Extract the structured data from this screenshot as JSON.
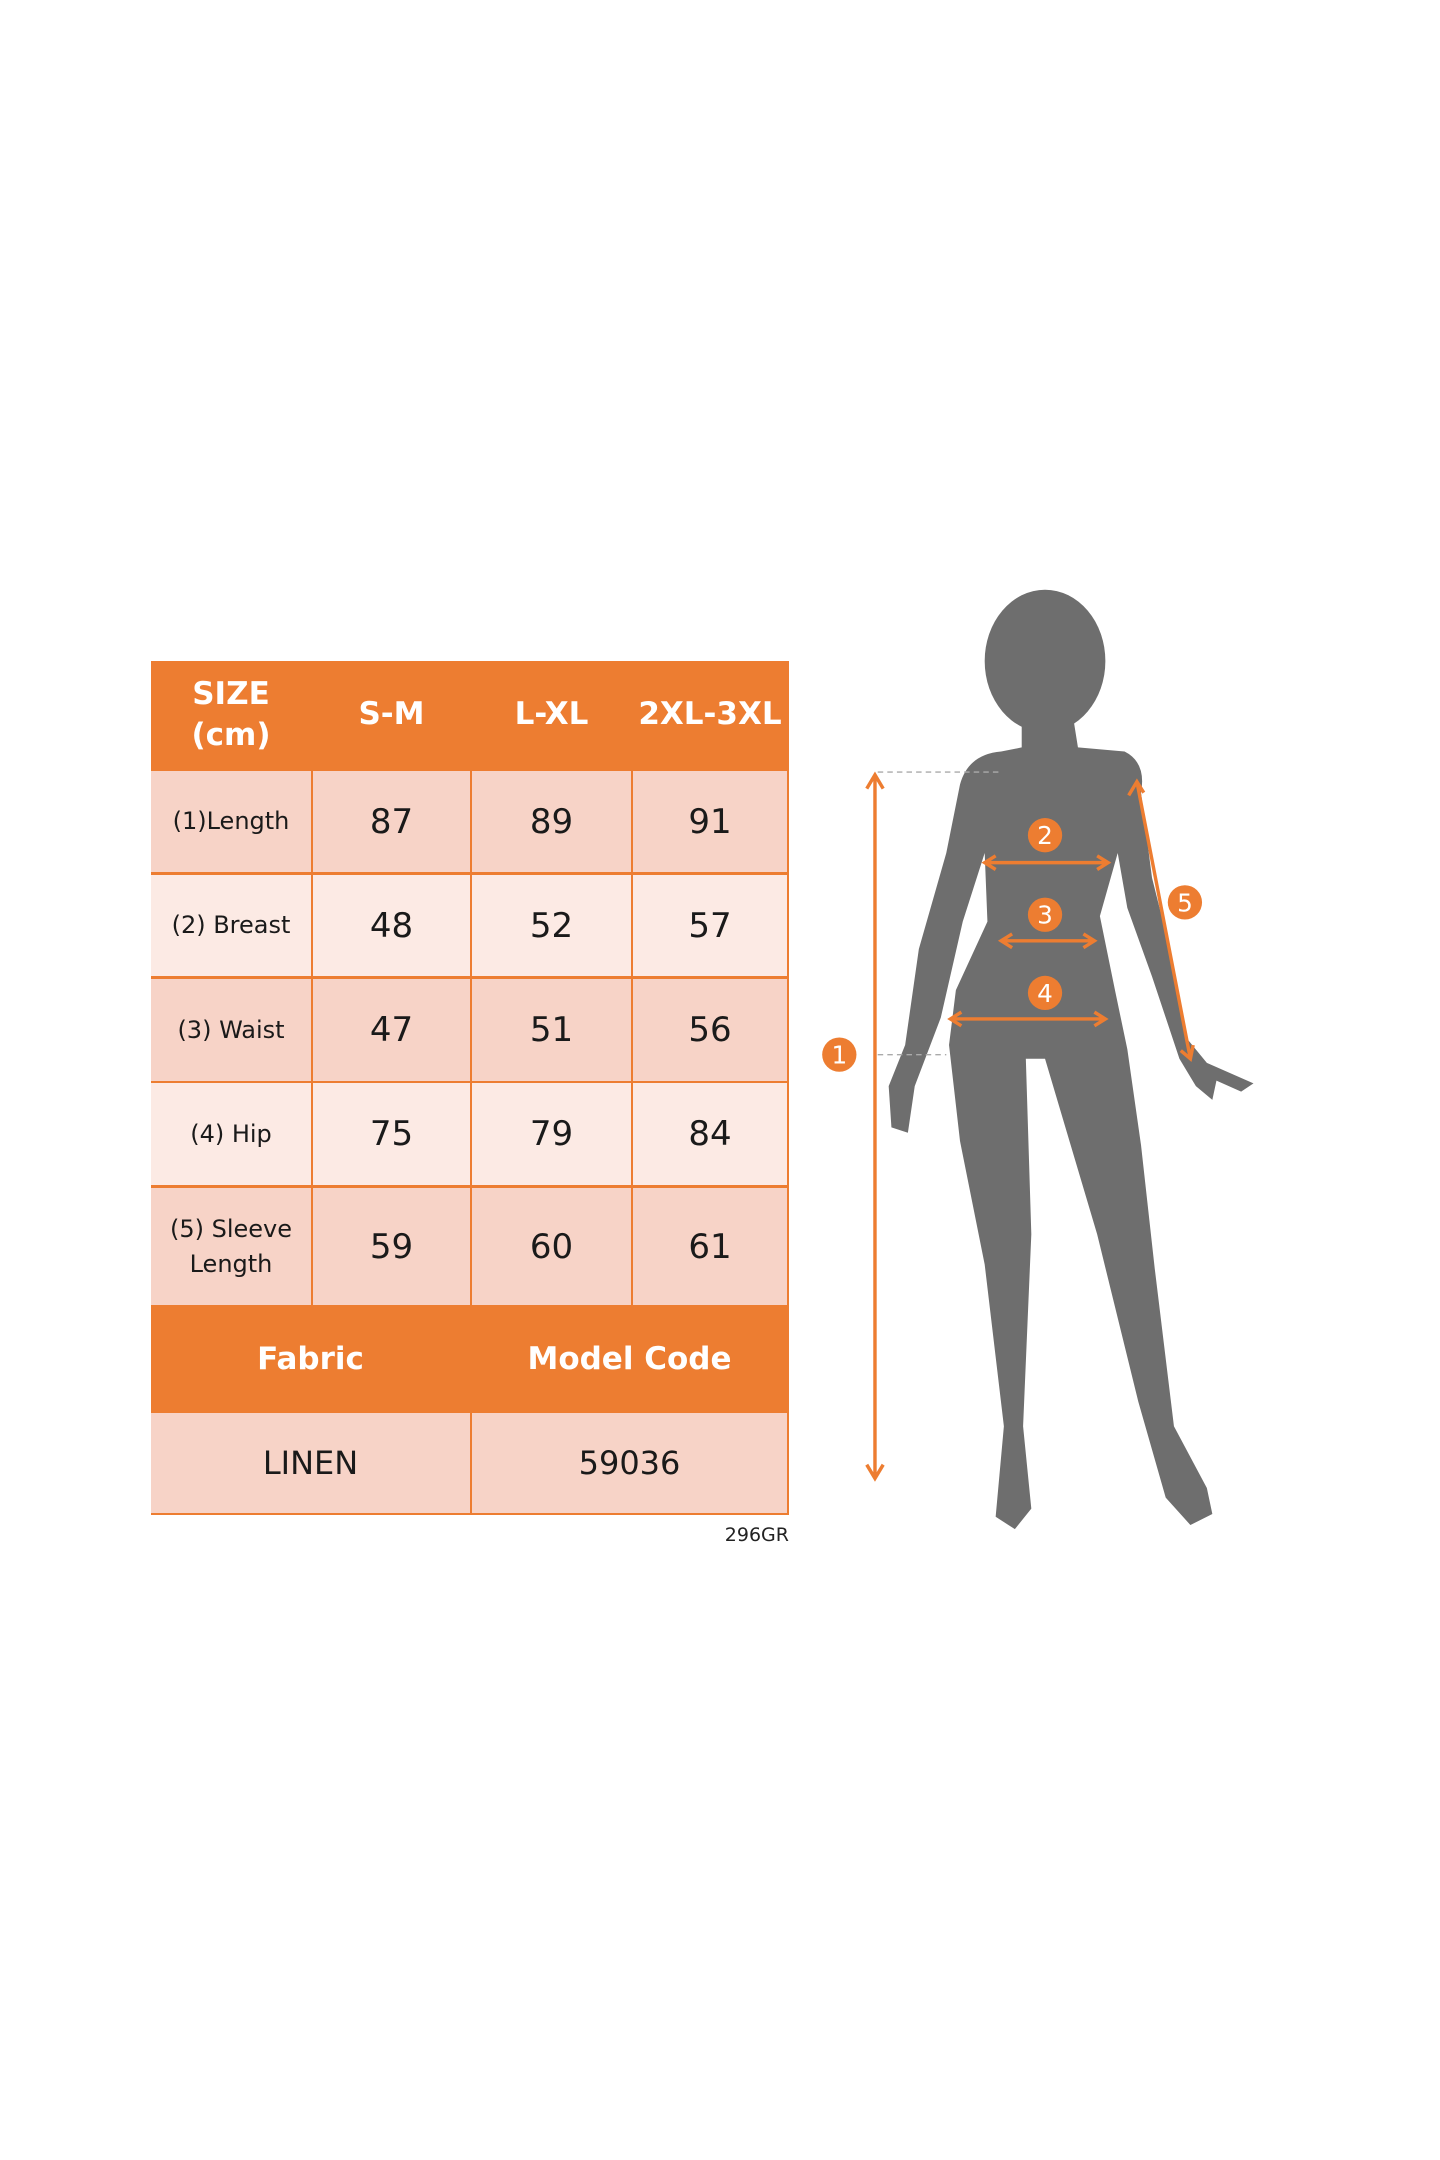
{
  "table": {
    "header": [
      "SIZE\n(cm)",
      "S-M",
      "L-XL",
      "2XL-3XL"
    ],
    "header_size": "SIZE",
    "header_unit": "(cm)",
    "rows": [
      {
        "label": "(1)Length",
        "values": [
          "87",
          "89",
          "91"
        ]
      },
      {
        "label": "(2) Breast",
        "values": [
          "48",
          "52",
          "57"
        ]
      },
      {
        "label": "(3) Waist",
        "values": [
          "47",
          "51",
          "56"
        ]
      },
      {
        "label": "(4) Hip",
        "values": [
          "75",
          "79",
          "84"
        ]
      },
      {
        "label": "(5) Sleeve Length",
        "values": [
          "59",
          "60",
          "61"
        ]
      }
    ],
    "footer_headers": [
      "Fabric",
      "Model Code"
    ],
    "footer_values": [
      "LINEN",
      "59036"
    ]
  },
  "product_code": "296GR",
  "figure": {
    "markers": [
      "1",
      "2",
      "3",
      "4",
      "5"
    ],
    "accent_color": "#ED7D31",
    "silhouette_color": "#6E6E6E"
  },
  "colors": {
    "header": "#ED7D31",
    "cell_dark": "#F7D3C7",
    "cell_light": "#FCEAE4"
  }
}
